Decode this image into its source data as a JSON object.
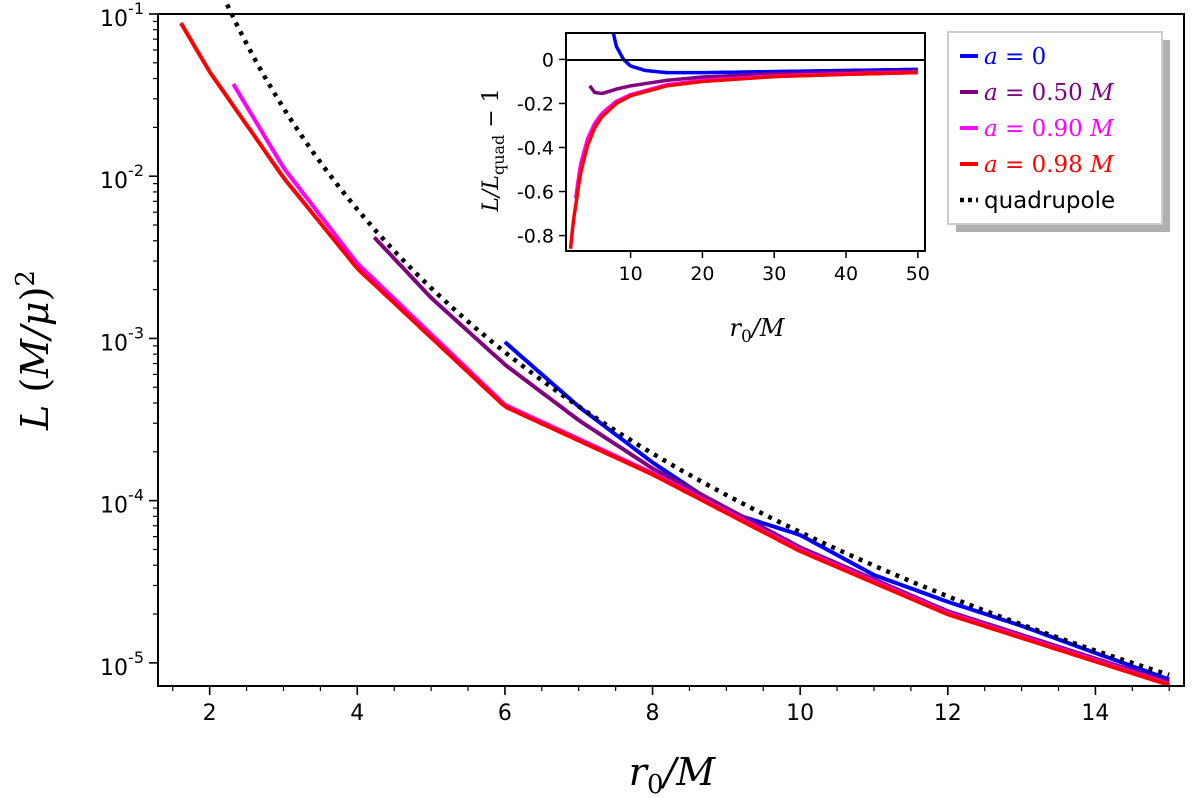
{
  "chart_data": [
    {
      "type": "line",
      "yscale": "log",
      "xlabel": "r_0/M",
      "ylabel": "L (M/μ)^2",
      "xlim": [
        1.3,
        15.2
      ],
      "ylim": [
        7.2e-06,
        0.1
      ],
      "xticks": [
        2,
        4,
        6,
        8,
        10,
        12,
        14
      ],
      "yticks": [
        {
          "value": 0.1,
          "base": "10",
          "exp": "-1"
        },
        {
          "value": 0.01,
          "base": "10",
          "exp": "-2"
        },
        {
          "value": 0.001,
          "base": "10",
          "exp": "-3"
        },
        {
          "value": 0.0001,
          "base": "10",
          "exp": "-4"
        },
        {
          "value": 1e-05,
          "base": "10",
          "exp": "-5"
        }
      ],
      "series": [
        {
          "name": "quadrupole",
          "label": "quadrupole",
          "color": "#000000",
          "style": "dotted",
          "x_start": 2.18,
          "x_end": 15,
          "formula": "32/5 * r^-5"
        },
        {
          "name": "a0",
          "label": "a = 0",
          "color": "#0000ff",
          "x": [
            6,
            7,
            8,
            9,
            10,
            11,
            12,
            13,
            14,
            15
          ],
          "values": [
            0.00095,
            0.00038,
            0.000172,
            8.58e-05,
            6.14e-05,
            3.48e-05,
            2.38e-05,
            1.69e-05,
            1.15e-05,
            7.9e-06
          ]
        },
        {
          "name": "a050",
          "label": "a = 0.50 M",
          "color": "#800080",
          "x": [
            4.23,
            5,
            6,
            7,
            8,
            10,
            12,
            15
          ],
          "values": [
            0.0042,
            0.00178,
            0.00069,
            0.000313,
            0.000158,
            5.15e-05,
            2.08e-05,
            7.6e-06
          ]
        },
        {
          "name": "a090",
          "label": "a = 0.90 M",
          "color": "#ff00ff",
          "x": [
            2.32,
            3,
            4,
            6,
            8,
            10,
            12,
            15
          ],
          "values": [
            0.037,
            0.0113,
            0.0029,
            0.00039,
            0.000148,
            4.97e-05,
            2.03e-05,
            7.4e-06
          ]
        },
        {
          "name": "a098",
          "label": "a = 0.98 M",
          "color": "#ff0000",
          "x": [
            1.61,
            2,
            3,
            4,
            6,
            8,
            10,
            12,
            15
          ],
          "values": [
            0.088,
            0.044,
            0.0098,
            0.0027,
            0.00038,
            0.000145,
            4.88e-05,
            1.99e-05,
            7.3e-06
          ]
        }
      ]
    },
    {
      "type": "line",
      "placement": "inset-top-right",
      "xlabel": "r_0/M",
      "ylabel": "L/L_quad − 1",
      "xlim": [
        1,
        51
      ],
      "ylim": [
        -0.87,
        0.12
      ],
      "xticks": [
        10,
        20,
        30,
        40,
        50
      ],
      "yticks": [
        {
          "value": 0,
          "label": "0"
        },
        {
          "value": -0.2,
          "label": "-0.2"
        },
        {
          "value": -0.4,
          "label": "-0.4"
        },
        {
          "value": -0.6,
          "label": "-0.6"
        },
        {
          "value": -0.8,
          "label": "-0.8"
        }
      ],
      "reference_line": 0,
      "series": [
        {
          "name": "a0",
          "color": "#0000ff",
          "x": [
            7.6,
            8,
            9,
            10,
            12,
            15,
            20,
            30,
            40,
            50
          ],
          "values": [
            0.12,
            0.06,
            0.0,
            -0.03,
            -0.05,
            -0.06,
            -0.06,
            -0.055,
            -0.05,
            -0.045
          ]
        },
        {
          "name": "a050",
          "color": "#800080",
          "x": [
            4.3,
            5,
            6,
            7,
            8,
            10,
            15,
            20,
            30,
            40,
            50
          ],
          "values": [
            -0.12,
            -0.15,
            -0.155,
            -0.145,
            -0.135,
            -0.12,
            -0.095,
            -0.08,
            -0.065,
            -0.058,
            -0.052
          ]
        },
        {
          "name": "a090",
          "color": "#ff00ff",
          "x": [
            2.35,
            3,
            4,
            5,
            6,
            8,
            10,
            15,
            20,
            30,
            40,
            50
          ],
          "values": [
            -0.63,
            -0.48,
            -0.36,
            -0.29,
            -0.245,
            -0.19,
            -0.16,
            -0.115,
            -0.095,
            -0.075,
            -0.065,
            -0.058
          ]
        },
        {
          "name": "a098",
          "color": "#ff0000",
          "x": [
            1.62,
            2,
            3,
            4,
            5,
            6,
            8,
            10,
            15,
            20,
            30,
            40,
            50
          ],
          "values": [
            -0.86,
            -0.74,
            -0.52,
            -0.39,
            -0.31,
            -0.26,
            -0.2,
            -0.165,
            -0.12,
            -0.1,
            -0.078,
            -0.068,
            -0.06
          ]
        }
      ]
    }
  ],
  "legend": {
    "placement": "top-right",
    "entries": [
      {
        "name": "a0",
        "prefix": "a = ",
        "value": "0",
        "unit": "",
        "color": "#0000ff",
        "style": "solid"
      },
      {
        "name": "a050",
        "prefix": "a = ",
        "value": "0.50",
        "unit": "M",
        "color": "#800080",
        "style": "solid"
      },
      {
        "name": "a090",
        "prefix": "a = ",
        "value": "0.90",
        "unit": "M",
        "color": "#ff00ff",
        "style": "solid"
      },
      {
        "name": "a098",
        "prefix": "a = ",
        "value": "0.98",
        "unit": "M",
        "color": "#ff0000",
        "style": "solid"
      },
      {
        "name": "quadrupole",
        "prefix": "",
        "value": "quadrupole",
        "unit": "",
        "color": "#000000",
        "style": "dotted"
      }
    ]
  }
}
